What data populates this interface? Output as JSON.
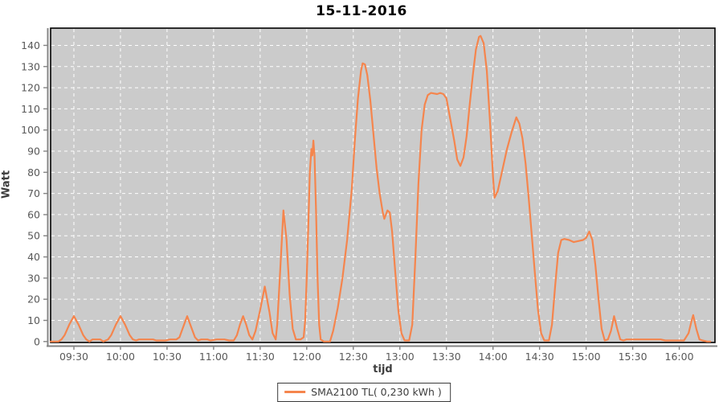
{
  "chart_data": {
    "type": "line",
    "title": "15-11-2016",
    "xlabel": "tijd",
    "ylabel": "Watt",
    "legend_label": "SMA2100 TL( 0,230 kWh )",
    "legend_position": "bottom-center",
    "grid": "white dashed gridlines on gray plot background",
    "colors": {
      "line": "#f5854d",
      "plot_bg": "#cbcbcb",
      "grid": "#ffffff",
      "plot_border": "#000000",
      "axis_line": "#848484",
      "tick_text": "#595959"
    },
    "x_axis_minutes_range": [
      555,
      983
    ],
    "ylim": [
      0,
      148
    ],
    "y_ticks": [
      0,
      10,
      20,
      30,
      40,
      50,
      60,
      70,
      80,
      90,
      100,
      110,
      120,
      130,
      140
    ],
    "x_ticks": [
      {
        "m": 570,
        "label": "09:30"
      },
      {
        "m": 600,
        "label": "10:00"
      },
      {
        "m": 630,
        "label": "10:30"
      },
      {
        "m": 660,
        "label": "11:00"
      },
      {
        "m": 690,
        "label": "11:30"
      },
      {
        "m": 720,
        "label": "12:00"
      },
      {
        "m": 750,
        "label": "12:30"
      },
      {
        "m": 780,
        "label": "13:00"
      },
      {
        "m": 810,
        "label": "13:30"
      },
      {
        "m": 840,
        "label": "14:00"
      },
      {
        "m": 870,
        "label": "14:30"
      },
      {
        "m": 900,
        "label": "15:00"
      },
      {
        "m": 930,
        "label": "15:30"
      },
      {
        "m": 960,
        "label": "16:00"
      }
    ],
    "series": [
      {
        "name": "SMA2100 TL( 0,230 kWh )",
        "color": "#f5854d",
        "points": [
          [
            555,
            0
          ],
          [
            560,
            0
          ],
          [
            562,
            1
          ],
          [
            564,
            3
          ],
          [
            567,
            8
          ],
          [
            570,
            12
          ],
          [
            573,
            8
          ],
          [
            576,
            3
          ],
          [
            578,
            1
          ],
          [
            580,
            0
          ],
          [
            582,
            1
          ],
          [
            587,
            1
          ],
          [
            589,
            0
          ],
          [
            592,
            1
          ],
          [
            594,
            3
          ],
          [
            597,
            8
          ],
          [
            600,
            12
          ],
          [
            603,
            8
          ],
          [
            606,
            3
          ],
          [
            608,
            1
          ],
          [
            610,
            0.5
          ],
          [
            612,
            1
          ],
          [
            621,
            1
          ],
          [
            623,
            0.5
          ],
          [
            629,
            0.5
          ],
          [
            632,
            1
          ],
          [
            636,
            1
          ],
          [
            638,
            2
          ],
          [
            640,
            6
          ],
          [
            643,
            12
          ],
          [
            646,
            6
          ],
          [
            648,
            2
          ],
          [
            650,
            0.5
          ],
          [
            652,
            1
          ],
          [
            656,
            1
          ],
          [
            658,
            0.5
          ],
          [
            662,
            1
          ],
          [
            667,
            1
          ],
          [
            670,
            0.5
          ],
          [
            673,
            0.5
          ],
          [
            675,
            3
          ],
          [
            677,
            8
          ],
          [
            679,
            12
          ],
          [
            681,
            8
          ],
          [
            683,
            3
          ],
          [
            685,
            1
          ],
          [
            687,
            5
          ],
          [
            690,
            15
          ],
          [
            693,
            26
          ],
          [
            696,
            14
          ],
          [
            698,
            4
          ],
          [
            700,
            1
          ],
          [
            701,
            8
          ],
          [
            703,
            35
          ],
          [
            705,
            62
          ],
          [
            707,
            48
          ],
          [
            709,
            22
          ],
          [
            711,
            6
          ],
          [
            713,
            1
          ],
          [
            716,
            1
          ],
          [
            718,
            2
          ],
          [
            719,
            10
          ],
          [
            720,
            30
          ],
          [
            721,
            55
          ],
          [
            722,
            80
          ],
          [
            723,
            91
          ],
          [
            723.6,
            88
          ],
          [
            724.3,
            95
          ],
          [
            725,
            88
          ],
          [
            726,
            62
          ],
          [
            727,
            30
          ],
          [
            728,
            8
          ],
          [
            729,
            1
          ],
          [
            731,
            0
          ],
          [
            735,
            0
          ],
          [
            737,
            5
          ],
          [
            740,
            16
          ],
          [
            743,
            30
          ],
          [
            746,
            48
          ],
          [
            749,
            72
          ],
          [
            751,
            95
          ],
          [
            753,
            115
          ],
          [
            755,
            128
          ],
          [
            756,
            131.5
          ],
          [
            757.5,
            131
          ],
          [
            759,
            126
          ],
          [
            761,
            114
          ],
          [
            763,
            98
          ],
          [
            765,
            82
          ],
          [
            767,
            70
          ],
          [
            769,
            61
          ],
          [
            770,
            58
          ],
          [
            772,
            62
          ],
          [
            773.5,
            61
          ],
          [
            775,
            52
          ],
          [
            777,
            33
          ],
          [
            779,
            15
          ],
          [
            781,
            4
          ],
          [
            783,
            0.5
          ],
          [
            786,
            0.5
          ],
          [
            788,
            8
          ],
          [
            790,
            40
          ],
          [
            792,
            75
          ],
          [
            794,
            100
          ],
          [
            796,
            112
          ],
          [
            798,
            116.5
          ],
          [
            800,
            117.5
          ],
          [
            804,
            117
          ],
          [
            806,
            117.5
          ],
          [
            808,
            117
          ],
          [
            810,
            115
          ],
          [
            812,
            107
          ],
          [
            815,
            95
          ],
          [
            817,
            86
          ],
          [
            819,
            83
          ],
          [
            821,
            87
          ],
          [
            823,
            97
          ],
          [
            825,
            112
          ],
          [
            827,
            126
          ],
          [
            829,
            138
          ],
          [
            831,
            144
          ],
          [
            832,
            144.5
          ],
          [
            834,
            141
          ],
          [
            836,
            128
          ],
          [
            838,
            105
          ],
          [
            840,
            78
          ],
          [
            841,
            68
          ],
          [
            843,
            71
          ],
          [
            846,
            81
          ],
          [
            849,
            91
          ],
          [
            852,
            99
          ],
          [
            855,
            106
          ],
          [
            857,
            103
          ],
          [
            859,
            96
          ],
          [
            861,
            84
          ],
          [
            863,
            68
          ],
          [
            865,
            50
          ],
          [
            867,
            32
          ],
          [
            869,
            15
          ],
          [
            871,
            4
          ],
          [
            873,
            0.5
          ],
          [
            876,
            0.5
          ],
          [
            878,
            8
          ],
          [
            880,
            26
          ],
          [
            882,
            42
          ],
          [
            884,
            48
          ],
          [
            886,
            48.5
          ],
          [
            889,
            48
          ],
          [
            892,
            47
          ],
          [
            895,
            47.5
          ],
          [
            898,
            48
          ],
          [
            900,
            49
          ],
          [
            902,
            52
          ],
          [
            904,
            48
          ],
          [
            906,
            36
          ],
          [
            908,
            20
          ],
          [
            910,
            6
          ],
          [
            912,
            0.5
          ],
          [
            914,
            1
          ],
          [
            916,
            5
          ],
          [
            918,
            12
          ],
          [
            920,
            6
          ],
          [
            922,
            1
          ],
          [
            924,
            0.5
          ],
          [
            926,
            1
          ],
          [
            948,
            1
          ],
          [
            951,
            0.5
          ],
          [
            963,
            0.5
          ],
          [
            966,
            4
          ],
          [
            968,
            10
          ],
          [
            969,
            12.5
          ],
          [
            971,
            6
          ],
          [
            973,
            1
          ],
          [
            975,
            0.5
          ],
          [
            978,
            0
          ],
          [
            980,
            0
          ]
        ]
      }
    ]
  }
}
